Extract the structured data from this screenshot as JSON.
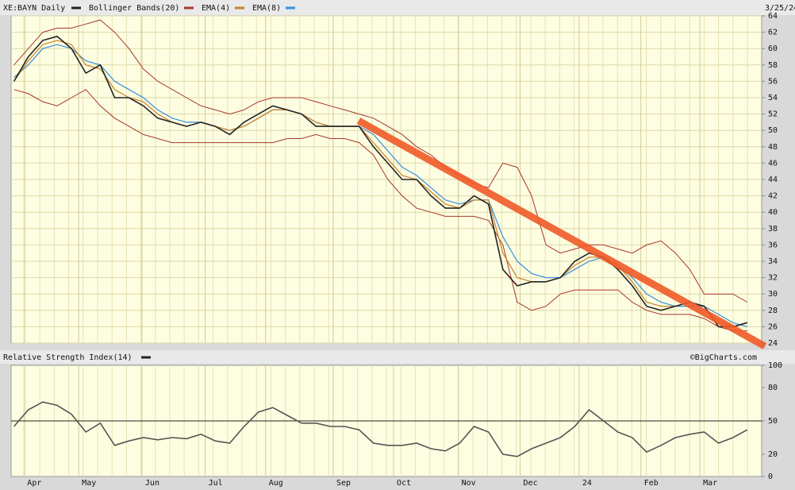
{
  "header": {
    "symbol": "XE:BAYN Daily",
    "date": "3/25/24",
    "source": "©BigCharts.com"
  },
  "chart_data": [
    {
      "type": "line",
      "x": [
        0,
        1,
        2,
        3,
        4,
        5,
        6,
        7,
        8,
        9,
        10,
        11,
        12,
        13,
        14,
        15,
        16,
        17,
        18,
        19,
        20,
        21,
        22,
        23,
        24,
        25,
        26,
        27,
        28,
        29,
        30,
        31,
        32,
        33,
        34,
        35,
        36,
        37,
        38,
        39,
        40,
        41,
        42,
        43,
        44,
        45,
        46,
        47,
        48,
        49,
        50,
        51
      ],
      "xlim": [
        -0.2,
        52
      ],
      "ylim": [
        24,
        64
      ],
      "yticks": [
        24,
        26,
        28,
        30,
        32,
        34,
        36,
        38,
        40,
        42,
        44,
        46,
        48,
        50,
        52,
        54,
        56,
        58,
        60,
        62,
        64
      ],
      "grid": true,
      "series": [
        {
          "name": "XE:BAYN Daily",
          "color": "#222222",
          "values": [
            56,
            59,
            61,
            61.5,
            60,
            57,
            58,
            54,
            54,
            53,
            51.5,
            51,
            50.5,
            51,
            50.5,
            49.5,
            51,
            52,
            53,
            52.5,
            52,
            50.5,
            50.5,
            50.5,
            50.5,
            48,
            46,
            44,
            44,
            42,
            40.5,
            40.5,
            42,
            41,
            33,
            31,
            31.5,
            31.5,
            32,
            34,
            35,
            34.5,
            33,
            31,
            28.5,
            28,
            28.5,
            29,
            28.5,
            26,
            26,
            26.5
          ]
        },
        {
          "name": "EMA(4)",
          "color": "#c9822b",
          "values": [
            56,
            58.5,
            60.5,
            61,
            60.5,
            58,
            57.5,
            55,
            54,
            53.5,
            52,
            51,
            50.5,
            51,
            50.5,
            50,
            50.5,
            51.5,
            52.5,
            52.5,
            52,
            51,
            50.5,
            50.5,
            50.5,
            48.5,
            46.5,
            44.5,
            44,
            42.5,
            41,
            40.5,
            41.5,
            41.5,
            35,
            32,
            31.5,
            31.5,
            32,
            33.5,
            34.5,
            34.5,
            33.5,
            31.5,
            29,
            28.5,
            28.5,
            29,
            28.5,
            26.5,
            26,
            26.5
          ]
        },
        {
          "name": "EMA(8)",
          "color": "#3a8fd8",
          "values": [
            56.5,
            58,
            60,
            60.5,
            60,
            58.5,
            58,
            56,
            55,
            54,
            52.5,
            51.5,
            51,
            51,
            50.5,
            50,
            50.5,
            51.5,
            52.5,
            52.5,
            52,
            51,
            50.5,
            50.5,
            50.5,
            49.5,
            47.5,
            45.5,
            44.5,
            43,
            41.5,
            41,
            41.5,
            41.5,
            37,
            34,
            32.5,
            32,
            32,
            33,
            34,
            34.5,
            33.5,
            32,
            30,
            29,
            28.5,
            28.5,
            28.5,
            27.5,
            26.5,
            26
          ]
        }
      ],
      "bands": {
        "name": "Bollinger Bands(20)",
        "color": "#a8362a",
        "upper": [
          58,
          60,
          62,
          62.5,
          62.5,
          63,
          63.5,
          62,
          60,
          57.5,
          56,
          55,
          54,
          53,
          52.5,
          52,
          52.5,
          53.5,
          54,
          54,
          54,
          53.5,
          53,
          52.5,
          52,
          51.5,
          50.5,
          49.5,
          48,
          47,
          45.5,
          44.5,
          43.5,
          43,
          46,
          45.5,
          42,
          36,
          35,
          35.5,
          36,
          36,
          35.5,
          35,
          36,
          36.5,
          35,
          33,
          30,
          30,
          30,
          29
        ],
        "lower": [
          55,
          54.5,
          53.5,
          53,
          54,
          55,
          53,
          51.5,
          50.5,
          49.5,
          49,
          48.5,
          48.5,
          48.5,
          48.5,
          48.5,
          48.5,
          48.5,
          48.5,
          49,
          49,
          49.5,
          49,
          49,
          48.5,
          47,
          44,
          42,
          40.5,
          40,
          39.5,
          39.5,
          39.5,
          39,
          36,
          29,
          28,
          28.5,
          30,
          30.5,
          30.5,
          30.5,
          30.5,
          29,
          28,
          27.5,
          27.5,
          27.5,
          27,
          26,
          25.5,
          25.5
        ]
      }
    },
    {
      "type": "line",
      "title": "Relative Strength Index(14)",
      "x": [
        0,
        1,
        2,
        3,
        4,
        5,
        6,
        7,
        8,
        9,
        10,
        11,
        12,
        13,
        14,
        15,
        16,
        17,
        18,
        19,
        20,
        21,
        22,
        23,
        24,
        25,
        26,
        27,
        28,
        29,
        30,
        31,
        32,
        33,
        34,
        35,
        36,
        37,
        38,
        39,
        40,
        41,
        42,
        43,
        44,
        45,
        46,
        47,
        48,
        49,
        50,
        51
      ],
      "xlim": [
        -0.2,
        52
      ],
      "xticks": [
        {
          "value": 0.7,
          "label": "Apr"
        },
        {
          "value": 4.5,
          "label": "May"
        },
        {
          "value": 8.9,
          "label": "Jun"
        },
        {
          "value": 13.3,
          "label": "Jul"
        },
        {
          "value": 17.5,
          "label": "Aug"
        },
        {
          "value": 22.2,
          "label": "Sep"
        },
        {
          "value": 26.4,
          "label": "Oct"
        },
        {
          "value": 30.9,
          "label": "Nov"
        },
        {
          "value": 35.2,
          "label": "Dec"
        },
        {
          "value": 39.3,
          "label": "24"
        },
        {
          "value": 43.6,
          "label": "Feb"
        },
        {
          "value": 47.7,
          "label": "Mar"
        }
      ],
      "ylim": [
        0,
        100
      ],
      "yticks": [
        0,
        20,
        50,
        80,
        100
      ],
      "reference_line": 50,
      "series": [
        {
          "name": "Relative Strength Index(14)",
          "color": "#555555",
          "values": [
            45,
            60,
            67,
            64,
            56,
            40,
            48,
            28,
            32,
            35,
            33,
            35,
            34,
            38,
            32,
            30,
            45,
            58,
            62,
            55,
            48,
            48,
            45,
            45,
            42,
            30,
            28,
            28,
            30,
            25,
            23,
            30,
            45,
            40,
            20,
            18,
            25,
            30,
            35,
            45,
            60,
            50,
            40,
            35,
            22,
            28,
            35,
            38,
            40,
            30,
            35,
            42
          ]
        }
      ]
    }
  ]
}
